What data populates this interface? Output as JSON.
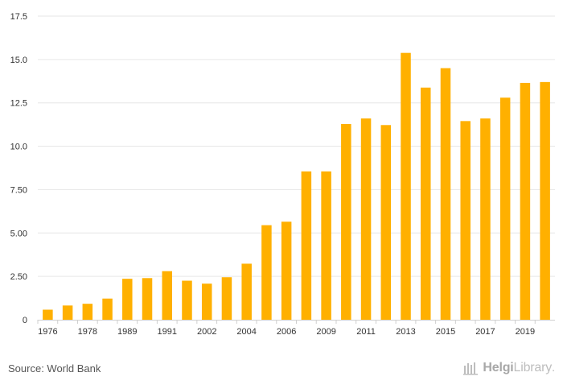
{
  "chart_data": {
    "type": "bar",
    "title": "",
    "xlabel": "",
    "ylabel": "",
    "ylim": [
      0,
      17.5
    ],
    "yticks": [
      0,
      2.5,
      5,
      7.5,
      10,
      12.5,
      15,
      17.5
    ],
    "ytick_labels": [
      "0",
      "2.50",
      "5.00",
      "7.50",
      "10.0",
      "12.5",
      "15.0",
      "17.5"
    ],
    "categories": [
      "1976",
      "1977",
      "1978",
      "1979",
      "1989",
      "1990",
      "1991",
      "1992",
      "2002",
      "2003",
      "2004",
      "2005",
      "2006",
      "2008",
      "2009",
      "2010",
      "2011",
      "2012",
      "2013",
      "2014",
      "2015",
      "2016",
      "2017",
      "2018",
      "2019",
      "2020"
    ],
    "xtick_labels": [
      "1976",
      "",
      "1978",
      "",
      "1989",
      "",
      "1991",
      "",
      "2002",
      "",
      "2004",
      "",
      "2006",
      "",
      "2009",
      "",
      "2011",
      "",
      "2013",
      "",
      "2015",
      "",
      "2017",
      "",
      "2019",
      ""
    ],
    "values": [
      0.58,
      0.82,
      0.92,
      1.22,
      2.36,
      2.4,
      2.8,
      2.25,
      2.08,
      2.45,
      3.23,
      5.45,
      5.65,
      8.55,
      8.55,
      11.28,
      11.6,
      11.22,
      15.38,
      13.38,
      14.5,
      11.45,
      11.6,
      12.8,
      13.65,
      13.7
    ],
    "bar_color": "#ffb000",
    "grid": true,
    "grid_color": "#e6e6e6"
  },
  "footer": {
    "source": "Source: World Bank",
    "brand_part1": "Helgi",
    "brand_part2": "Library",
    "brand_part3": "."
  }
}
